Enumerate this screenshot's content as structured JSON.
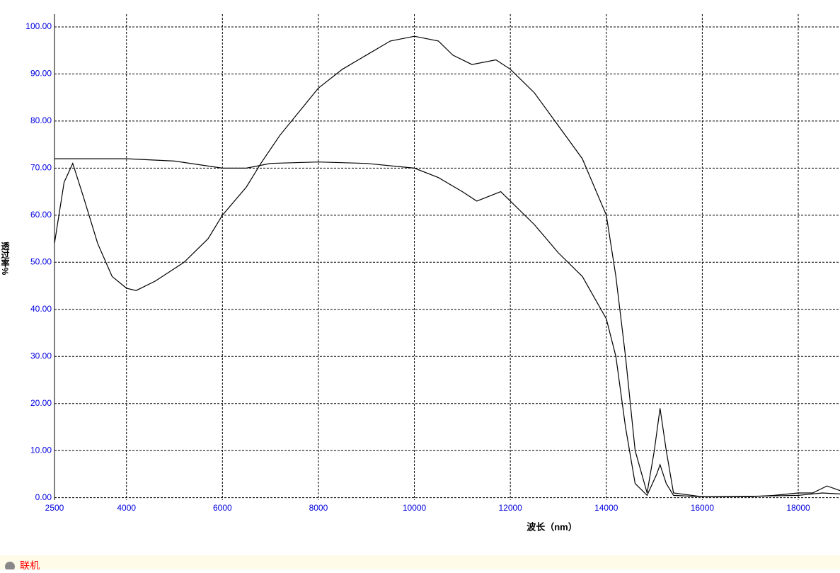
{
  "chart_data": {
    "type": "line",
    "x_label": "波长（nm）",
    "y_label": "透过率%",
    "status": "联机",
    "xlim": [
      2500,
      18870
    ],
    "ylim": [
      -0.5,
      102.7
    ],
    "xticks": [
      2500,
      4000,
      6000,
      8000,
      10000,
      12000,
      14000,
      16000,
      18000
    ],
    "yticks": [
      {
        "value": 0,
        "label": "0.00"
      },
      {
        "value": 10,
        "label": "10.00"
      },
      {
        "value": 20,
        "label": "20.00"
      },
      {
        "value": 30,
        "label": "30.00"
      },
      {
        "value": 40,
        "label": "40.00"
      },
      {
        "value": 50,
        "label": "50.00"
      },
      {
        "value": 60,
        "label": "60.00"
      },
      {
        "value": 70,
        "label": "70.00"
      },
      {
        "value": 80,
        "label": "80.00"
      },
      {
        "value": 90,
        "label": "90.00"
      },
      {
        "value": 100,
        "label": "100.00"
      }
    ],
    "grid": true,
    "series": [
      {
        "color": "#000000",
        "x": [
          2500,
          2700,
          2880,
          3100,
          3400,
          3700,
          4000,
          4200,
          4600,
          5200,
          5700,
          6000,
          6500,
          6800,
          7200,
          7600,
          8000,
          8500,
          9000,
          9500,
          10000,
          10500,
          10800,
          11200,
          11700,
          12000,
          12500,
          13000,
          13500,
          14000,
          14200,
          14400,
          14600,
          14850,
          15000,
          15120,
          15250,
          15400,
          16000,
          17000,
          17500,
          18000,
          18300,
          18600,
          18870
        ],
        "values": [
          54,
          67,
          71,
          64,
          54,
          47,
          44.5,
          44,
          46,
          50,
          55,
          60,
          66,
          71,
          77,
          82,
          87,
          91,
          94,
          97,
          98,
          97,
          94,
          92,
          93,
          91,
          86,
          79,
          72,
          60,
          47,
          30,
          10,
          1,
          10,
          19,
          10,
          1,
          0.2,
          0.2,
          0.5,
          1,
          1,
          2.5,
          1.5
        ]
      },
      {
        "color": "#000000",
        "x": [
          2500,
          3000,
          4000,
          5000,
          6000,
          6500,
          7000,
          8000,
          9000,
          10000,
          10500,
          11000,
          11300,
          11800,
          12000,
          12500,
          13000,
          13500,
          14000,
          14200,
          14400,
          14600,
          14850,
          15050,
          15120,
          15250,
          15400,
          16000,
          17000,
          18000,
          18500,
          18870
        ],
        "values": [
          72,
          72,
          72,
          71.5,
          70,
          70,
          71,
          71.3,
          71,
          70,
          68,
          65,
          63,
          65,
          63,
          58,
          52,
          47,
          38,
          30,
          15,
          3,
          0.5,
          5,
          7,
          3,
          0.5,
          0.2,
          0.3,
          0.5,
          1,
          0.8
        ]
      }
    ]
  }
}
